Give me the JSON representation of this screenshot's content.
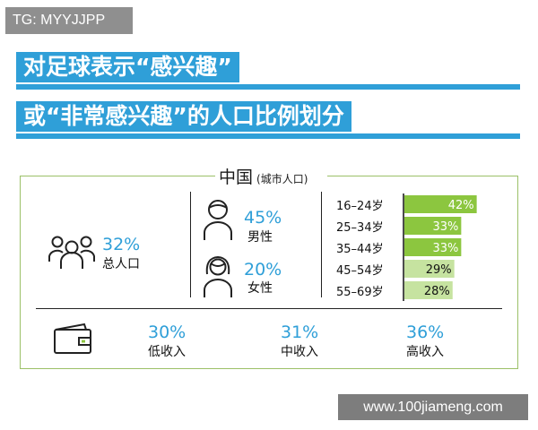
{
  "watermark_top": "TG: MYYJJPP",
  "title_line1": "对足球表示“感兴趣”",
  "title_line2": "或“非常感兴趣”的人口比例划分",
  "section": {
    "name": "中国",
    "sub": "(城市人口)"
  },
  "total": {
    "value": "32%",
    "label": "总人口"
  },
  "gender": [
    {
      "value": "45%",
      "label": "男性"
    },
    {
      "value": "20%",
      "label": "女性"
    }
  ],
  "income": [
    {
      "value": "30%",
      "label": "低收入"
    },
    {
      "value": "31%",
      "label": "中收入"
    },
    {
      "value": "36%",
      "label": "高收入"
    }
  ],
  "chart_data": {
    "type": "bar",
    "orientation": "horizontal",
    "categories": [
      "16–24岁",
      "25–34岁",
      "35–44岁",
      "45–54岁",
      "55–69岁"
    ],
    "values": [
      42,
      33,
      33,
      29,
      28
    ],
    "value_labels": [
      "42%",
      "33%",
      "33%",
      "29%",
      "28%"
    ],
    "colors": [
      "#8cc63f",
      "#8cc63f",
      "#8cc63f",
      "#c6e3a0",
      "#c6e3a0"
    ],
    "xlim": [
      0,
      50
    ]
  },
  "colors": {
    "accent_blue": "#2f9fd8",
    "green": "#8cc63f",
    "light_green": "#c6e3a0"
  },
  "icons": [
    "people-group-icon",
    "male-person-icon",
    "female-person-icon",
    "wallet-icon"
  ],
  "watermark_bottom": "www.100jiameng.com"
}
